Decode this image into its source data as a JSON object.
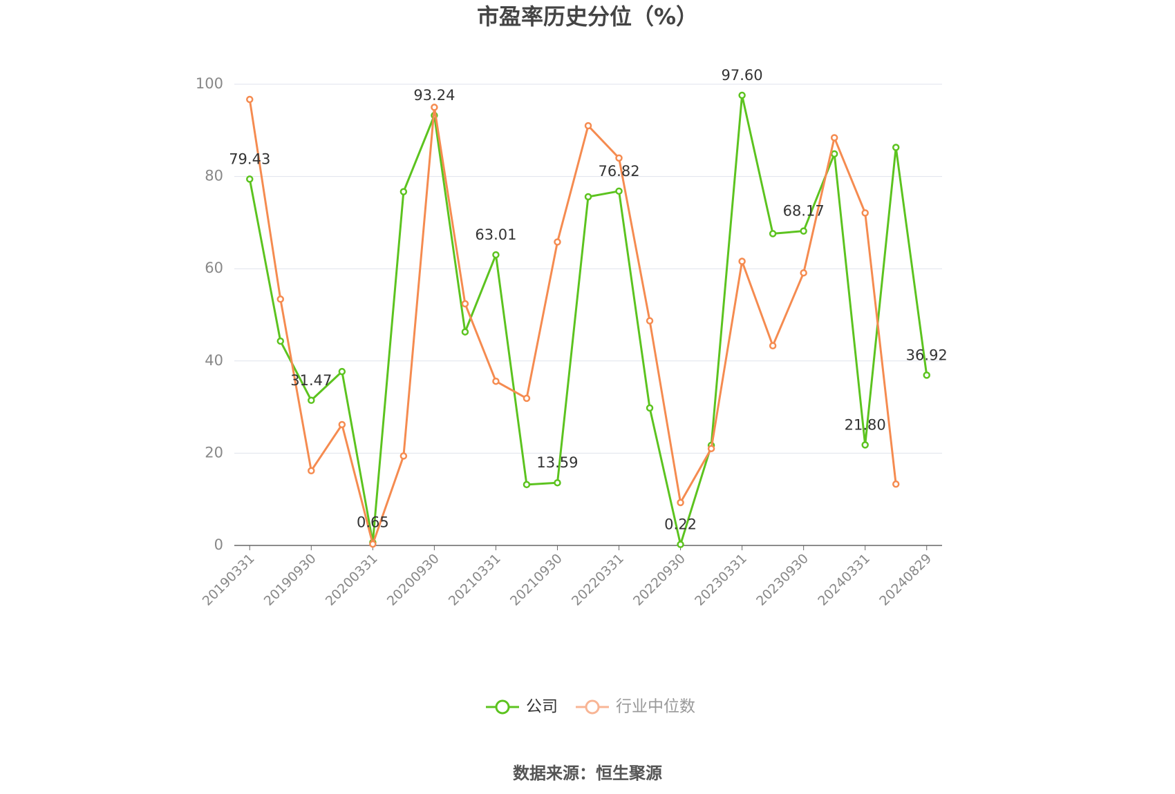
{
  "chart_data": {
    "type": "line",
    "title": "市盈率历史分位（%）",
    "source": "数据来源：恒生聚源",
    "categories": [
      "20190331",
      null,
      "20190930",
      null,
      "20200331",
      null,
      "20200930",
      null,
      "20210331",
      null,
      "20210930",
      null,
      "20220331",
      null,
      "20220930",
      null,
      "20230331",
      null,
      "20230930",
      null,
      "20240331",
      null,
      "20240829"
    ],
    "series": [
      {
        "name": "公司",
        "color": "#5cc31f",
        "values": [
          79.43,
          44.3,
          31.47,
          37.7,
          0.65,
          76.7,
          93.24,
          46.3,
          63.01,
          13.2,
          13.59,
          75.6,
          76.82,
          29.8,
          0.22,
          21.7,
          97.6,
          67.6,
          68.17,
          84.9,
          21.8,
          86.3,
          36.92
        ],
        "value_labels": [
          "79.43",
          null,
          "31.47",
          null,
          "0.65",
          null,
          "93.24",
          null,
          "63.01",
          null,
          "13.59",
          null,
          "76.82",
          null,
          "0.22",
          null,
          "97.60",
          null,
          "68.17",
          null,
          "21.80",
          null,
          "36.92"
        ]
      },
      {
        "name": "行业中位数",
        "color": "#f58b50",
        "values": [
          96.7,
          53.4,
          16.2,
          26.2,
          0.3,
          19.4,
          95.0,
          52.4,
          35.6,
          31.9,
          65.8,
          91.0,
          84.0,
          48.7,
          9.3,
          21.0,
          61.6,
          43.3,
          59.1,
          88.4,
          72.1,
          13.3,
          null
        ]
      }
    ],
    "ylim": [
      0,
      100
    ],
    "yticks": [
      0,
      20,
      40,
      60,
      80,
      100
    ],
    "grid": true,
    "legend": "bottom"
  }
}
